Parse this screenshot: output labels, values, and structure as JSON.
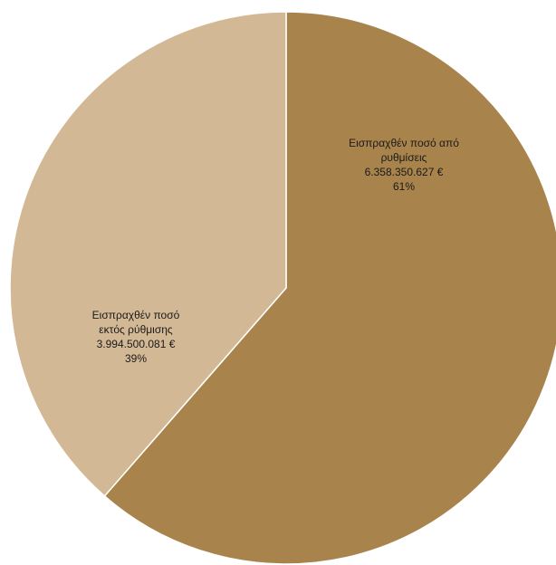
{
  "chart_data": {
    "type": "pie",
    "title": "",
    "slices": [
      {
        "label_lines": [
          "Εισπραχθέν ποσό από",
          "ρυθμίσεις"
        ],
        "amount": "6.358.350.627 €",
        "value": 6358350627,
        "percent": "61%",
        "color": "#a8834c"
      },
      {
        "label_lines": [
          "Εισπραχθέν ποσό",
          "εκτός ρύθμισης"
        ],
        "amount": "3.994.500.081 €",
        "value": 3994500081,
        "percent": "39%",
        "color": "#d3b895"
      }
    ],
    "start_angle_deg": 0,
    "direction": "clockwise",
    "slice_border_color": "#ffffff"
  }
}
